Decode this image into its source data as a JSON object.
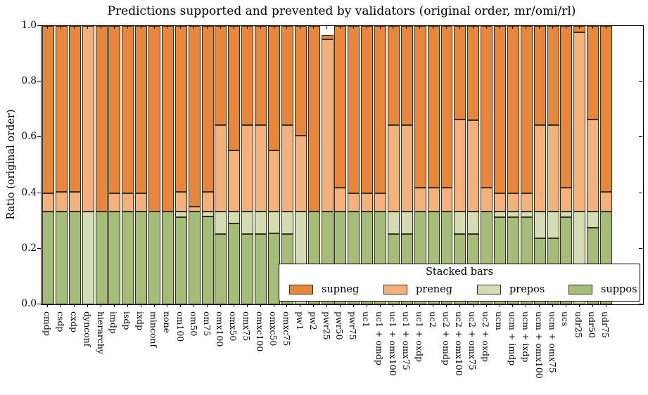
{
  "title": "Predictions supported and prevented by validators (original order, mr/omi/rl)",
  "ylabel": "Ratio (original order)",
  "yticks": [
    "0.0",
    "0.2",
    "0.4",
    "0.6",
    "0.8",
    "1.0"
  ],
  "legend": {
    "title": "Stacked bars",
    "entries": [
      {
        "label": "supneg",
        "color": "#e8873b"
      },
      {
        "label": "preneg",
        "color": "#f4b17c"
      },
      {
        "label": "prepos",
        "color": "#d3dcb3"
      },
      {
        "label": "suppos",
        "color": "#a6bd79"
      }
    ]
  },
  "colors": {
    "supneg": "#e8873b",
    "preneg": "#f4b17c",
    "prepos": "#d3dcb3",
    "suppos": "#a6bd79",
    "bar_edge": "#33301d",
    "axis": "#000000",
    "background": "#ffffff"
  },
  "chart_data": {
    "type": "bar",
    "stacked": true,
    "title": "Predictions supported and prevented by validators (original order, mr/omi/rl)",
    "xlabel": "",
    "ylabel": "Ratio (original order)",
    "ylim": [
      0.0,
      1.0
    ],
    "grid": false,
    "legend_title": "Stacked bars",
    "legend_position": "lower right",
    "stack_order_bottom_to_top": [
      "suppos",
      "prepos",
      "preneg",
      "supneg"
    ],
    "categories": [
      "cmdp",
      "csdp",
      "cxdp",
      "dynconf",
      "hierarchy",
      "imdp",
      "isdp",
      "ixdp",
      "minconf",
      "none",
      "om100",
      "om50",
      "om75",
      "omx100",
      "omx50",
      "omx75",
      "omxc100",
      "omxc50",
      "omxc75",
      "pw1",
      "pw2",
      "pwr25",
      "pwr50",
      "pwr75",
      "uc1",
      "uc1 + omdp",
      "uc1 + omx100",
      "uc1 + omx75",
      "uc1 + oxdp",
      "uc2",
      "uc2 + omdp",
      "uc2 + omx100",
      "uc2 + omx75",
      "uc2 + oxdp",
      "ucm",
      "ucm + imdp",
      "ucm + ixdp",
      "ucm + omx100",
      "ucm + omx75",
      "ucs",
      "udr25",
      "udr50",
      "udr75"
    ],
    "series": [
      {
        "name": "suppos",
        "color": "#a6bd79",
        "values": [
          0.333,
          0.333,
          0.333,
          0,
          0.333,
          0.333,
          0.333,
          0.333,
          0.333,
          0.333,
          0.312,
          0.333,
          0.315,
          0.253,
          0.29,
          0.253,
          0.253,
          0.254,
          0.253,
          0,
          0.333,
          0.333,
          0.333,
          0.333,
          0.333,
          0.333,
          0.253,
          0.253,
          0.333,
          0.333,
          0.333,
          0.253,
          0.253,
          0.333,
          0.312,
          0.312,
          0.312,
          0.237,
          0.237,
          0.312,
          0,
          0.275,
          0.333
        ]
      },
      {
        "name": "prepos",
        "color": "#d3dcb3",
        "values": [
          0,
          0,
          0,
          0.333,
          0,
          0,
          0,
          0,
          0,
          0,
          0.021,
          0,
          0.018,
          0.08,
          0.043,
          0.08,
          0.08,
          0.079,
          0.08,
          0.333,
          0,
          0,
          0,
          0,
          0,
          0,
          0.08,
          0.08,
          0,
          0,
          0,
          0.08,
          0.08,
          0,
          0.021,
          0.021,
          0.021,
          0.096,
          0.096,
          0.021,
          0.333,
          0.058,
          0
        ]
      },
      {
        "name": "preneg",
        "color": "#f4b17c",
        "values": [
          0.067,
          0.072,
          0.072,
          0.667,
          0,
          0.067,
          0.067,
          0.067,
          0,
          0,
          0.072,
          0.017,
          0.072,
          0.312,
          0.219,
          0.312,
          0.312,
          0.219,
          0.311,
          0.273,
          0,
          0.62,
          0.087,
          0.067,
          0.067,
          0.067,
          0.312,
          0.312,
          0.087,
          0.087,
          0.087,
          0.332,
          0.328,
          0.087,
          0.067,
          0.067,
          0.067,
          0.312,
          0.312,
          0.087,
          0.645,
          0.332,
          0.072
        ]
      },
      {
        "name": "supneg",
        "color": "#e8873b",
        "values": [
          0.6,
          0.595,
          0.595,
          0,
          0.667,
          0.6,
          0.6,
          0.6,
          0.667,
          0.667,
          0.595,
          0.65,
          0.595,
          0.355,
          0.448,
          0.355,
          0.355,
          0.448,
          0.356,
          0.394,
          0.667,
          0.013,
          0.58,
          0.6,
          0.6,
          0.6,
          0.355,
          0.355,
          0.58,
          0.58,
          0.58,
          0.335,
          0.339,
          0.58,
          0.6,
          0.6,
          0.6,
          0.355,
          0.355,
          0.58,
          0.022,
          0.335,
          0.595
        ]
      }
    ]
  }
}
